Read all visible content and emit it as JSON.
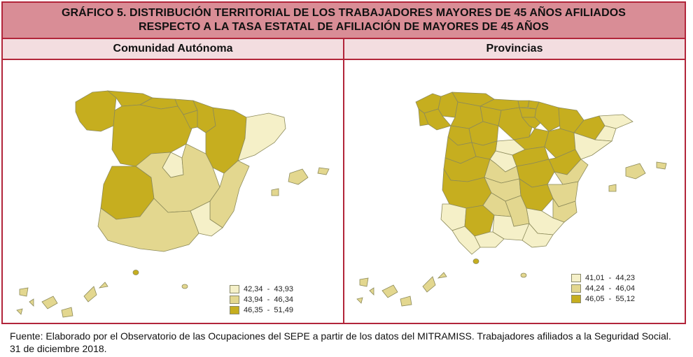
{
  "title": {
    "line1": "GRÁFICO  5. DISTRIBUCIÓN TERRITORIAL DE LOS TRABAJADORES MAYORES DE 45 AÑOS AFILIADOS",
    "line2": "RESPECTO A LA TASA ESTATAL DE AFILIACIÓN DE MAYORES DE 45 AÑOS"
  },
  "columns": {
    "left": "Comunidad Autónoma",
    "right": "Provincias"
  },
  "colors": {
    "border": "#b2253a",
    "title_bg": "#d98d96",
    "header_bg": "#f3dde0",
    "class_low": "#f5f0c8",
    "class_mid": "#e3d78f",
    "class_high": "#c6ae1f"
  },
  "chart_data": [
    {
      "type": "choropleth-map",
      "panel": "Comunidad Autónoma",
      "legend": [
        {
          "from": "42,34",
          "to": "43,93",
          "class": "low"
        },
        {
          "from": "43,94",
          "to": "46,34",
          "class": "mid"
        },
        {
          "from": "46,35",
          "to": "51,49",
          "class": "high"
        }
      ],
      "legend_position": "bottom-right"
    },
    {
      "type": "choropleth-map",
      "panel": "Provincias",
      "legend": [
        {
          "from": "41,01",
          "to": "44,23",
          "class": "low"
        },
        {
          "from": "44,24",
          "to": "46,04",
          "class": "mid"
        },
        {
          "from": "46,05",
          "to": "55,12",
          "class": "high"
        }
      ],
      "legend_position": "bottom-right"
    }
  ],
  "source": "Fuente: Elaborado por el Observatorio de las Ocupaciones del SEPE a partir de los datos del MITRAMISS. Trabajadores afiliados a la Seguridad Social. 31 de diciembre 2018."
}
